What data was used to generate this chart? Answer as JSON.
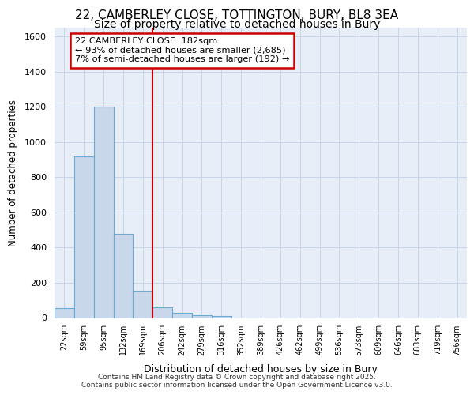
{
  "title1": "22, CAMBERLEY CLOSE, TOTTINGTON, BURY, BL8 3EA",
  "title2": "Size of property relative to detached houses in Bury",
  "xlabel": "Distribution of detached houses by size in Bury",
  "ylabel": "Number of detached properties",
  "bin_labels": [
    "22sqm",
    "59sqm",
    "95sqm",
    "132sqm",
    "169sqm",
    "206sqm",
    "242sqm",
    "279sqm",
    "316sqm",
    "352sqm",
    "389sqm",
    "426sqm",
    "462sqm",
    "499sqm",
    "536sqm",
    "573sqm",
    "609sqm",
    "646sqm",
    "683sqm",
    "719sqm",
    "756sqm"
  ],
  "bar_values": [
    55,
    920,
    1200,
    480,
    155,
    60,
    30,
    15,
    10,
    0,
    0,
    0,
    0,
    0,
    0,
    0,
    0,
    0,
    0,
    0,
    0
  ],
  "bar_color": "#c8d8ea",
  "bar_edge_color": "#6aaad4",
  "vline_x": 4.5,
  "vline_color": "#cc0000",
  "annotation_text": "22 CAMBERLEY CLOSE: 182sqm\n← 93% of detached houses are smaller (2,685)\n7% of semi-detached houses are larger (192) →",
  "annotation_box_color": "#cc0000",
  "annotation_bg": "white",
  "ylim": [
    0,
    1650
  ],
  "yticks": [
    0,
    200,
    400,
    600,
    800,
    1000,
    1200,
    1400,
    1600
  ],
  "grid_color": "#c8d4e8",
  "bg_color": "#e8eef8",
  "title_fontsize": 11,
  "subtitle_fontsize": 10,
  "footnote1": "Contains HM Land Registry data © Crown copyright and database right 2025.",
  "footnote2": "Contains public sector information licensed under the Open Government Licence v3.0."
}
